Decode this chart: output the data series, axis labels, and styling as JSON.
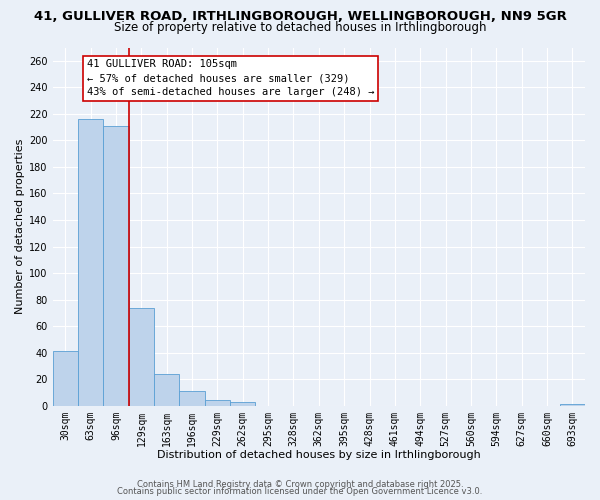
{
  "title": "41, GULLIVER ROAD, IRTHLINGBOROUGH, WELLINGBOROUGH, NN9 5GR",
  "subtitle": "Size of property relative to detached houses in Irthlingborough",
  "xlabel": "Distribution of detached houses by size in Irthlingborough",
  "ylabel": "Number of detached properties",
  "bin_labels": [
    "30sqm",
    "63sqm",
    "96sqm",
    "129sqm",
    "163sqm",
    "196sqm",
    "229sqm",
    "262sqm",
    "295sqm",
    "328sqm",
    "362sqm",
    "395sqm",
    "428sqm",
    "461sqm",
    "494sqm",
    "527sqm",
    "560sqm",
    "594sqm",
    "627sqm",
    "660sqm",
    "693sqm"
  ],
  "bar_values": [
    41,
    216,
    211,
    74,
    24,
    11,
    4,
    3,
    0,
    0,
    0,
    0,
    0,
    0,
    0,
    0,
    0,
    0,
    0,
    0,
    1
  ],
  "bar_color": "#bed3eb",
  "bar_edge_color": "#5a9fd4",
  "ylim": [
    0,
    270
  ],
  "yticks": [
    0,
    20,
    40,
    60,
    80,
    100,
    120,
    140,
    160,
    180,
    200,
    220,
    240,
    260
  ],
  "vline_x_idx": 2,
  "vline_color": "#cc0000",
  "annotation_line1": "41 GULLIVER ROAD: 105sqm",
  "annotation_line2": "← 57% of detached houses are smaller (329)",
  "annotation_line3": "43% of semi-detached houses are larger (248) →",
  "annotation_box_color": "#ffffff",
  "annotation_box_edge_color": "#cc0000",
  "footer_line1": "Contains HM Land Registry data © Crown copyright and database right 2025.",
  "footer_line2": "Contains public sector information licensed under the Open Government Licence v3.0.",
  "background_color": "#eaf0f8",
  "grid_color": "#ffffff",
  "title_fontsize": 9.5,
  "subtitle_fontsize": 8.5,
  "axis_label_fontsize": 8.0,
  "tick_label_fontsize": 7.0,
  "annotation_fontsize": 7.5,
  "footer_fontsize": 6.0
}
